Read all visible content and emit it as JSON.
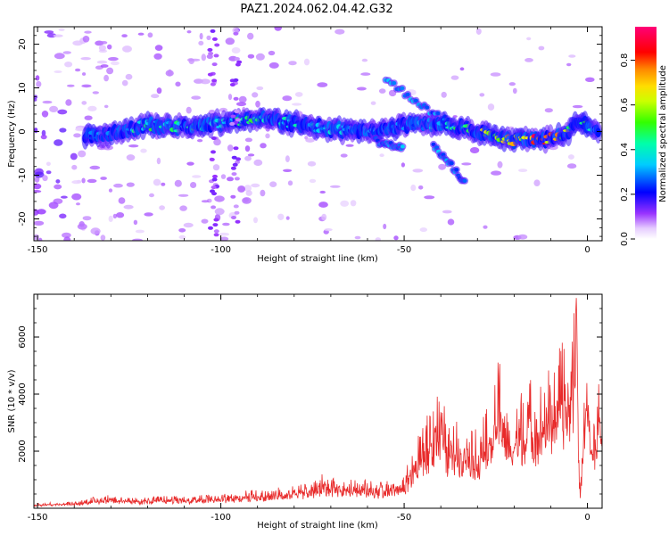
{
  "figure": {
    "title": "PAZ1.2024.062.04.42.G32"
  },
  "chart_data": [
    {
      "type": "heatmap",
      "title": "PAZ1.2024.062.04.42.G32",
      "xlabel": "Height of straight line (km)",
      "ylabel": "Frequency (Hz)",
      "xlim": [
        -151,
        4
      ],
      "ylim": [
        -25,
        24
      ],
      "xticks": [
        -150,
        -100,
        -50,
        0
      ],
      "yticks": [
        -20,
        -10,
        0,
        10,
        20
      ],
      "colorbar": {
        "label": "Normalized spectral amplitude",
        "range": [
          0,
          0.95
        ],
        "ticks": [
          0.0,
          0.2,
          0.4,
          0.6,
          0.8
        ],
        "colormap": "hsv-like (purple → blue → cyan → green → yellow → orange → red → magenta)"
      },
      "ridge": {
        "description": "Main spectral ridge (frequency vs height)",
        "x": [
          -137,
          -130,
          -120,
          -110,
          -100,
          -90,
          -80,
          -70,
          -60,
          -52,
          -48,
          -45,
          -40,
          -35,
          -30,
          -25,
          -20,
          -15,
          -10,
          -5,
          -3,
          0,
          3
        ],
        "y": [
          -1,
          -0.5,
          1.5,
          1,
          2,
          3,
          2,
          0.5,
          0,
          1,
          2,
          1.5,
          2,
          1,
          0,
          -1,
          -2,
          -2,
          -1.5,
          0,
          3,
          1,
          0
        ],
        "amplitude": [
          0.25,
          0.35,
          0.5,
          0.45,
          0.45,
          0.5,
          0.45,
          0.4,
          0.3,
          0.35,
          0.3,
          0.35,
          0.4,
          0.5,
          0.7,
          0.6,
          0.8,
          0.9,
          0.85,
          0.6,
          0.55,
          0.5,
          0.4
        ]
      }
    },
    {
      "type": "line",
      "title": "",
      "xlabel": "Height of straight line (km)",
      "ylabel": "SNR (10 * v/v)",
      "xlim": [
        -151,
        4
      ],
      "ylim": [
        0,
        7500
      ],
      "xticks": [
        -150,
        -100,
        -50,
        0
      ],
      "yticks": [
        2000,
        4000,
        6000
      ],
      "color": "#e82a2a",
      "series": [
        {
          "x": [
            -151,
            -145,
            -140,
            -135,
            -130,
            -125,
            -120,
            -115,
            -110,
            -105,
            -100,
            -95,
            -90,
            -85,
            -80,
            -75,
            -72,
            -70,
            -65,
            -60,
            -55,
            -50,
            -47,
            -45,
            -42,
            -40,
            -38,
            -35,
            -32,
            -30,
            -28,
            -26,
            -24,
            -22,
            -20,
            -18,
            -16,
            -14,
            -12,
            -10,
            -8,
            -6,
            -4,
            -3,
            -2.5,
            -2,
            -1,
            0,
            1,
            2,
            3,
            4
          ],
          "y": [
            120,
            140,
            150,
            250,
            300,
            230,
            250,
            280,
            270,
            300,
            320,
            380,
            420,
            460,
            500,
            600,
            800,
            700,
            750,
            650,
            600,
            800,
            1500,
            1800,
            2500,
            2800,
            1800,
            2000,
            2000,
            1700,
            2200,
            2400,
            3500,
            2300,
            2000,
            2700,
            3000,
            2700,
            3000,
            3200,
            3600,
            3800,
            4200,
            7500,
            2500,
            400,
            2800,
            3800,
            2000,
            2200,
            2800,
            3200
          ]
        }
      ]
    }
  ]
}
